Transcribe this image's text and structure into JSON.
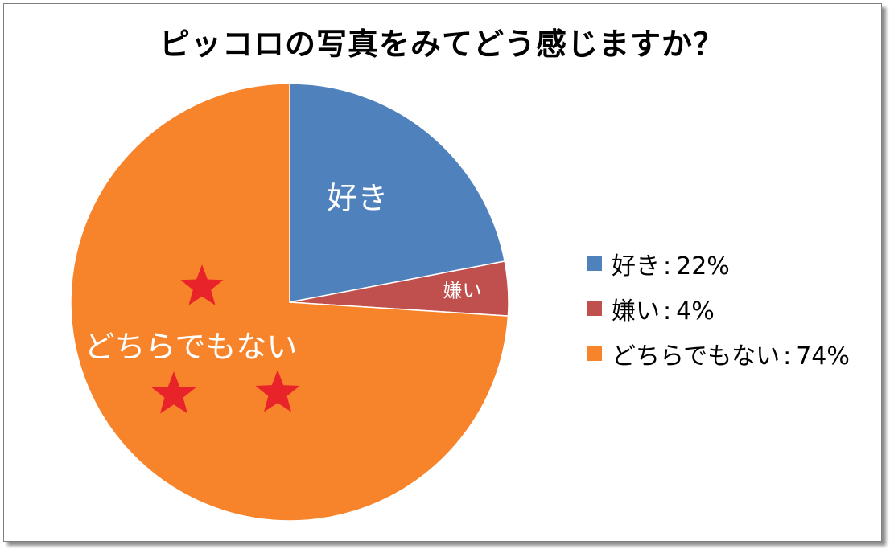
{
  "colors": {
    "like": "#4f81bd",
    "dislike": "#c0504d",
    "neutral": "#f7832a",
    "star": "#e8242a"
  },
  "chart_data": {
    "type": "pie",
    "title": "ピッコロの写真をみてどう感じますか？",
    "slices": [
      {
        "label": "好き",
        "value": 22,
        "legend": "好き",
        "percent": "22%",
        "data_label": "好き"
      },
      {
        "label": "嫌い",
        "value": 4,
        "legend": "嫌い",
        "percent": "4%",
        "data_label": "嫌い"
      },
      {
        "label": "どちらでもない",
        "value": 74,
        "legend": "どちらでもない",
        "percent": "74%",
        "data_label": "どちらでもない"
      }
    ],
    "legend_position": "right",
    "legend_separator": ":"
  },
  "decorations": {
    "stars": 3,
    "icon": "star-icon"
  }
}
